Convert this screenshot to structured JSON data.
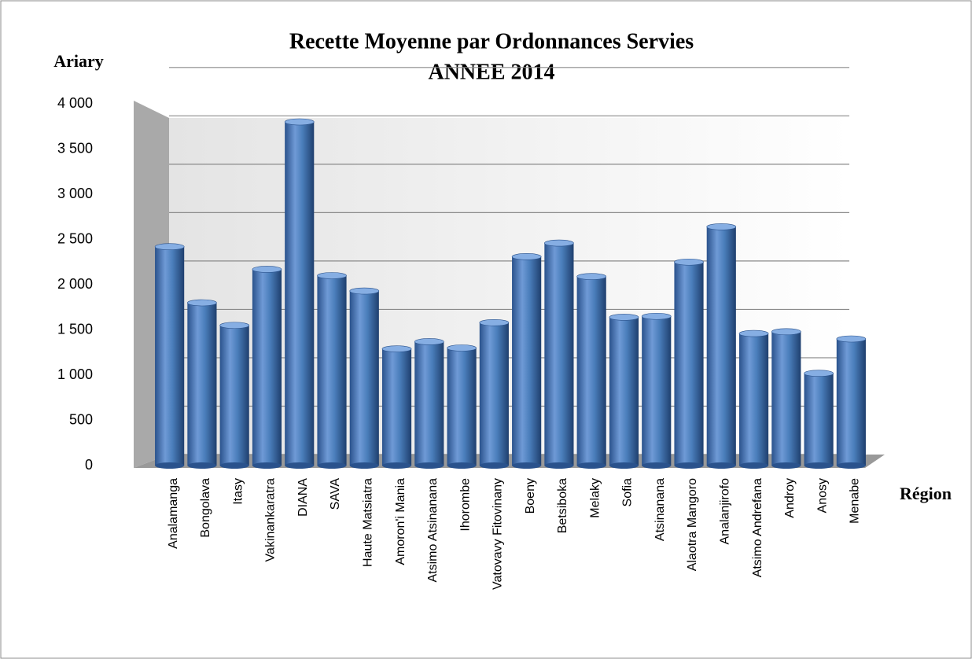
{
  "chart_data": {
    "type": "bar",
    "title": "Recette Moyenne par Ordonnances Servies",
    "subtitle": "ANNEE 2014",
    "y_label": "Ariary",
    "x_label": "Région",
    "categories": [
      "Analamanga",
      "Bongolava",
      "Itasy",
      "Vakinankaratra",
      "DIANA",
      "SAVA",
      "Haute Matsiatra",
      "Amoron'i Mania",
      "Atsimo Atsinanana",
      "Ihorombe",
      "Vatovavy Fitovinany",
      "Boeny",
      "Betsiboka",
      "Melaky",
      "Sofia",
      "Atsinanana",
      "Alaotra Mangoro",
      "Analanjirofo",
      "Atsimo Andrefana",
      "Androy",
      "Anosy",
      "Menabe"
    ],
    "values": [
      2420,
      1800,
      1550,
      2170,
      3800,
      2100,
      1930,
      1290,
      1370,
      1300,
      1580,
      2310,
      2460,
      2090,
      1640,
      1650,
      2250,
      2640,
      1460,
      1480,
      1020,
      1400
    ],
    "color": "#4a7ebb",
    "ylim": [
      0,
      4000
    ],
    "yticks": [
      0,
      500,
      {
        "value": 1000,
        "label": "1 000"
      },
      {
        "value": 1500,
        "label": "1 500"
      },
      {
        "value": 2000,
        "label": "2 000"
      },
      {
        "value": 2500,
        "label": "2 500"
      },
      {
        "value": 3000,
        "label": "3 000"
      },
      {
        "value": 3500,
        "label": "3 500"
      },
      {
        "value": 4000,
        "label": "4 000"
      }
    ],
    "grid": true
  }
}
